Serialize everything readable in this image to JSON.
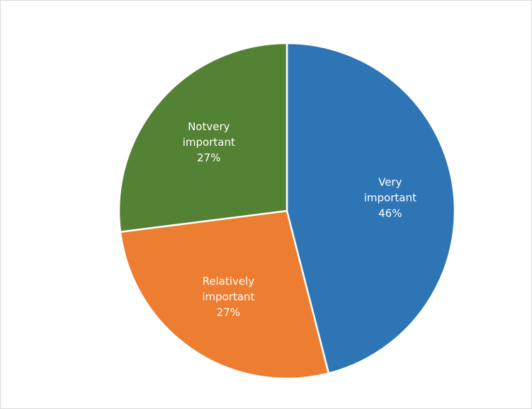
{
  "chart_data": {
    "type": "pie",
    "start_angle_deg": 0,
    "direction": "clockwise",
    "slices": [
      {
        "label_lines": [
          "Very",
          "important"
        ],
        "percent_label": "46%",
        "value": 46,
        "color": "#2e75b6"
      },
      {
        "label_lines": [
          "Relatively",
          "important"
        ],
        "percent_label": "27%",
        "value": 27,
        "color": "#ed7d31"
      },
      {
        "label_lines": [
          "Notvery",
          "important"
        ],
        "percent_label": "27%",
        "value": 27,
        "color": "#548235"
      }
    ]
  }
}
